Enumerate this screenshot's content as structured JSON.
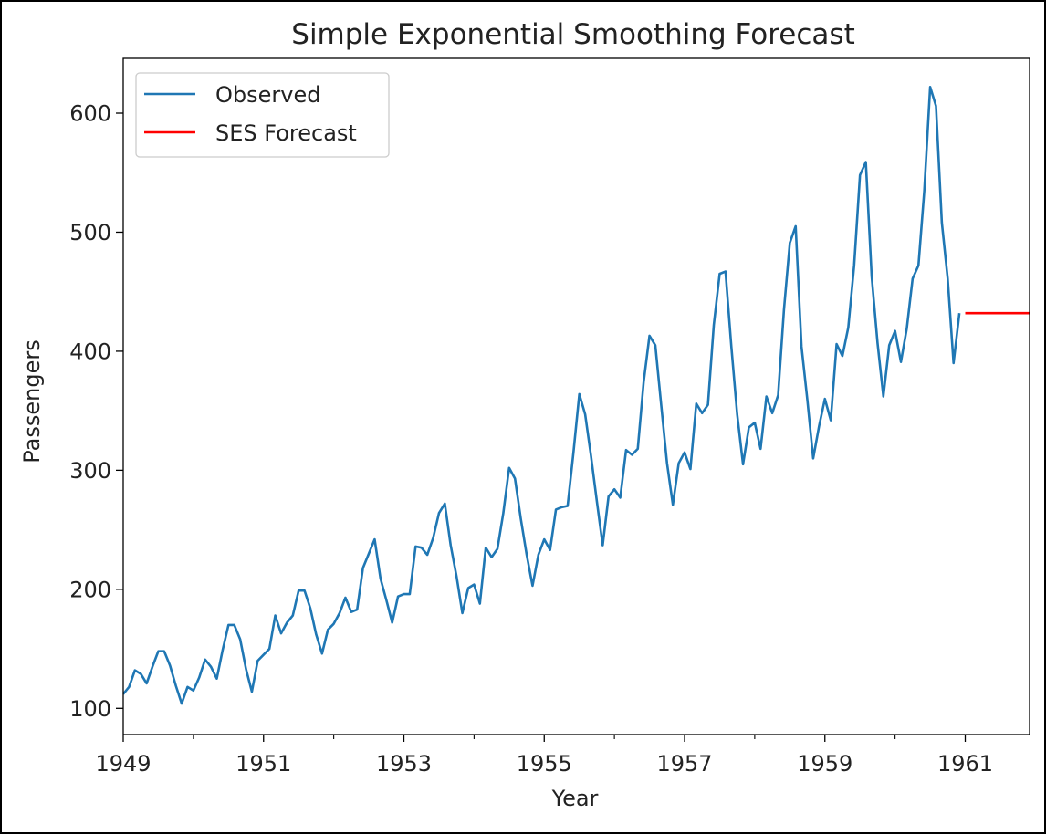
{
  "chart_data": {
    "type": "line",
    "title": "Simple Exponential Smoothing Forecast",
    "xlabel": "Year",
    "ylabel": "Passengers",
    "xlim": [
      1949.0,
      1961.917
    ],
    "ylim": [
      78,
      646
    ],
    "x_ticks": [
      1949,
      1951,
      1953,
      1955,
      1957,
      1959,
      1961
    ],
    "x_tick_labels": [
      "1949",
      "1951",
      "1953",
      "1955",
      "1957",
      "1959",
      "1961"
    ],
    "x_minor_ticks": [
      1950,
      1952,
      1954,
      1956,
      1958,
      1960
    ],
    "y_ticks": [
      100,
      200,
      300,
      400,
      500,
      600
    ],
    "y_tick_labels": [
      "100",
      "200",
      "300",
      "400",
      "500",
      "600"
    ],
    "grid": false,
    "legend_position": "top-left",
    "series": [
      {
        "name": "Observed",
        "color": "#1f77b4",
        "x_start": 1949.0,
        "x_step_months": 1,
        "values": [
          112,
          118,
          132,
          129,
          121,
          135,
          148,
          148,
          136,
          119,
          104,
          118,
          115,
          126,
          141,
          135,
          125,
          149,
          170,
          170,
          158,
          133,
          114,
          140,
          145,
          150,
          178,
          163,
          172,
          178,
          199,
          199,
          184,
          162,
          146,
          166,
          171,
          180,
          193,
          181,
          183,
          218,
          230,
          242,
          209,
          191,
          172,
          194,
          196,
          196,
          236,
          235,
          229,
          243,
          264,
          272,
          237,
          211,
          180,
          201,
          204,
          188,
          235,
          227,
          234,
          264,
          302,
          293,
          259,
          229,
          203,
          229,
          242,
          233,
          267,
          269,
          270,
          315,
          364,
          347,
          312,
          274,
          237,
          278,
          284,
          277,
          317,
          313,
          318,
          374,
          413,
          405,
          355,
          306,
          271,
          306,
          315,
          301,
          356,
          348,
          355,
          422,
          465,
          467,
          404,
          347,
          305,
          336,
          340,
          318,
          362,
          348,
          363,
          435,
          491,
          505,
          404,
          359,
          310,
          337,
          360,
          342,
          406,
          396,
          420,
          472,
          548,
          559,
          463,
          407,
          362,
          405,
          417,
          391,
          419,
          461,
          472,
          535,
          622,
          606,
          508,
          461,
          390,
          432
        ]
      },
      {
        "name": "SES Forecast",
        "color": "#ff0000",
        "x": [
          1961.0,
          1961.917
        ],
        "values": [
          432.0,
          432.0
        ]
      }
    ]
  }
}
